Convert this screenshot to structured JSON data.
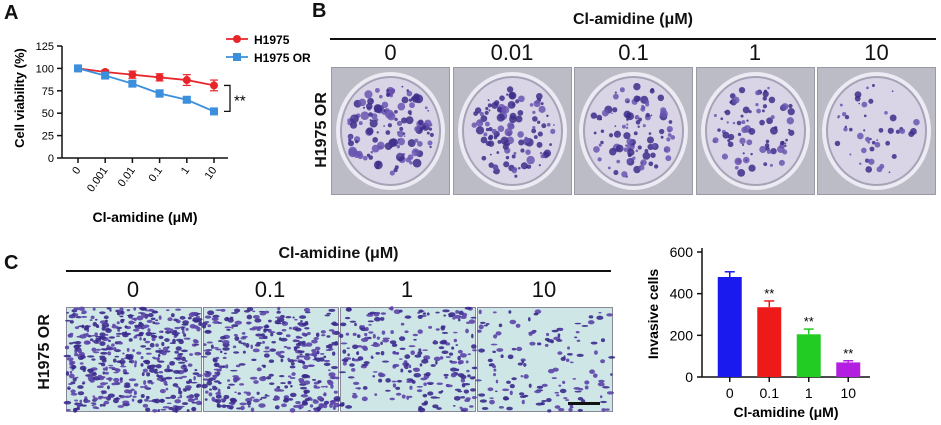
{
  "panels": {
    "A": {
      "letter": "A",
      "chart_data": {
        "type": "line",
        "categories": [
          "0",
          "0.001",
          "0.01",
          "0.1",
          "1",
          "10"
        ],
        "series": [
          {
            "name": "H1975",
            "values": [
              100,
              96,
              93,
              90,
              87,
              81
            ],
            "errors": [
              2,
              2,
              4,
              4,
              6,
              6
            ],
            "color": "#e8262a"
          },
          {
            "name": "H1975 OR",
            "values": [
              100,
              92,
              83,
              72,
              65,
              52
            ],
            "errors": [
              2,
              2,
              3,
              4,
              3,
              3
            ],
            "color": "#3c8fdd"
          }
        ],
        "xlabel": "Cl-amidine (μM)",
        "ylabel": "Cell viability (%)",
        "yticks": [
          "0",
          "25",
          "50",
          "75",
          "100",
          "125"
        ],
        "ylim": [
          0,
          125
        ],
        "significance": "**",
        "legend": "top-right"
      }
    },
    "B": {
      "letter": "B",
      "header": "Cl-amidine (μM)",
      "row_label": "H1975 OR",
      "concentrations": [
        "0",
        "0.01",
        "0.1",
        "1",
        "10"
      ],
      "colony_density": [
        1.0,
        0.85,
        0.75,
        0.6,
        0.35
      ]
    },
    "C": {
      "letter": "C",
      "header": "Cl-amidine (μM)",
      "row_label": "H1975 OR",
      "concentrations": [
        "0",
        "0.1",
        "1",
        "10"
      ],
      "cell_density": [
        1.0,
        0.75,
        0.5,
        0.28
      ],
      "chart_data": {
        "type": "bar",
        "categories": [
          "0",
          "0.1",
          "1",
          "10"
        ],
        "values": [
          480,
          335,
          205,
          70
        ],
        "errors": [
          25,
          30,
          25,
          8
        ],
        "colors": [
          "#1a1aee",
          "#ee1a1a",
          "#22cc22",
          "#b41ee0"
        ],
        "significance": [
          "",
          "**",
          "**",
          "**"
        ],
        "xlabel": "Cl-amidine (μM)",
        "ylabel": "Invasive cells",
        "yticks": [
          "0",
          "200",
          "400",
          "600"
        ],
        "ylim": [
          0,
          600
        ]
      }
    }
  }
}
